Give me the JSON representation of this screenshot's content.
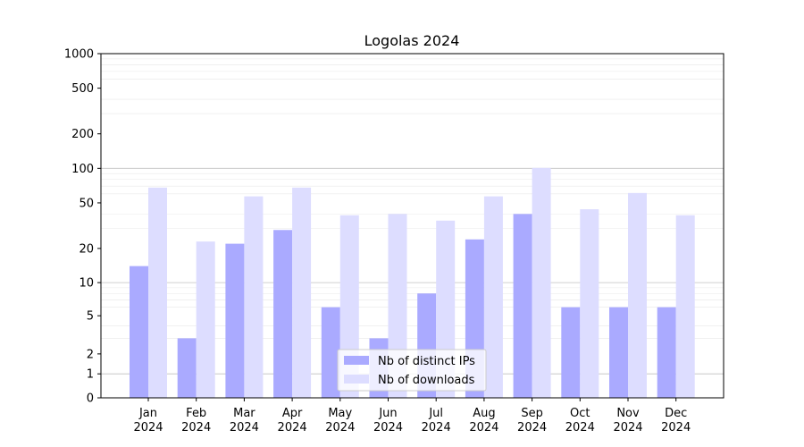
{
  "chart_data": {
    "type": "bar",
    "title": "Logolas 2024",
    "xlabel": "",
    "ylabel": "",
    "yscale": "symlog",
    "ylim": [
      0,
      1000
    ],
    "yticks": [
      0,
      1,
      2,
      5,
      10,
      20,
      50,
      100,
      200,
      500,
      1000
    ],
    "grid": "horizontal",
    "legend_position": "bottom-center",
    "categories": [
      {
        "month": "Jan",
        "year": "2024"
      },
      {
        "month": "Feb",
        "year": "2024"
      },
      {
        "month": "Mar",
        "year": "2024"
      },
      {
        "month": "Apr",
        "year": "2024"
      },
      {
        "month": "May",
        "year": "2024"
      },
      {
        "month": "Jun",
        "year": "2024"
      },
      {
        "month": "Jul",
        "year": "2024"
      },
      {
        "month": "Aug",
        "year": "2024"
      },
      {
        "month": "Sep",
        "year": "2024"
      },
      {
        "month": "Oct",
        "year": "2024"
      },
      {
        "month": "Nov",
        "year": "2024"
      },
      {
        "month": "Dec",
        "year": "2024"
      }
    ],
    "series": [
      {
        "name": "Nb of distinct IPs",
        "color": "#aaaaff",
        "values": [
          14,
          3,
          22,
          29,
          6,
          3,
          8,
          24,
          40,
          6,
          6,
          6
        ]
      },
      {
        "name": "Nb of downloads",
        "color": "#ddddff",
        "values": [
          68,
          23,
          57,
          68,
          39,
          40,
          35,
          57,
          101,
          44,
          61,
          39
        ]
      }
    ]
  }
}
